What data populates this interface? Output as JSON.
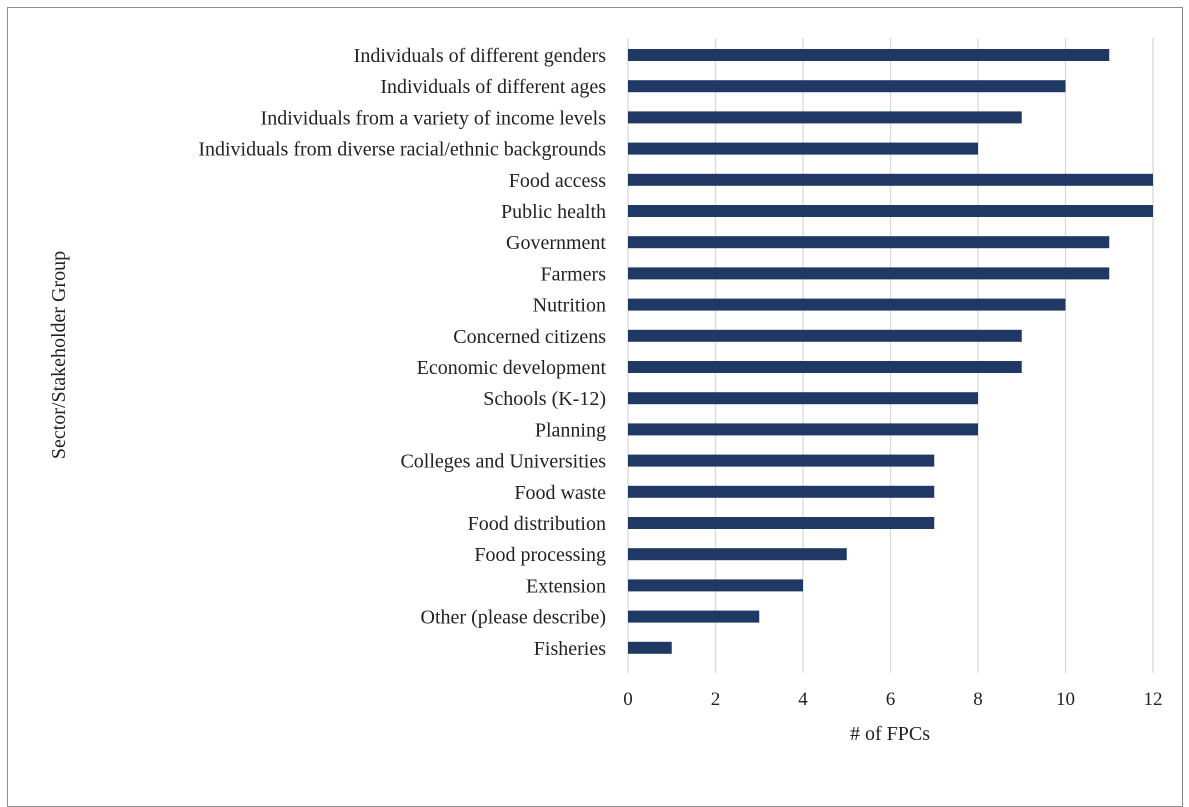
{
  "chart_data": {
    "type": "bar",
    "orientation": "horizontal",
    "categories": [
      "Individuals of different genders",
      "Individuals of different ages",
      "Individuals from a variety of income levels",
      "Individuals from diverse racial/ethnic backgrounds",
      "Food access",
      "Public health",
      "Government",
      "Farmers",
      "Nutrition",
      "Concerned citizens",
      "Economic development",
      "Schools (K-12)",
      "Planning",
      "Colleges and Universities",
      "Food waste",
      "Food distribution",
      "Food processing",
      "Extension",
      "Other (please describe)",
      "Fisheries"
    ],
    "values": [
      11,
      10,
      9,
      8,
      12,
      12,
      11,
      11,
      10,
      9,
      9,
      8,
      8,
      7,
      7,
      7,
      5,
      4,
      3,
      1
    ],
    "xlabel": "# of FPCs",
    "ylabel": "Sector/Stakeholder Group",
    "xlim": [
      0,
      12
    ],
    "xticks": [
      0,
      2,
      4,
      6,
      8,
      10,
      12
    ],
    "grid": "vertical",
    "bar_color": "#1f3864",
    "grid_color": "#d9d9d9"
  }
}
